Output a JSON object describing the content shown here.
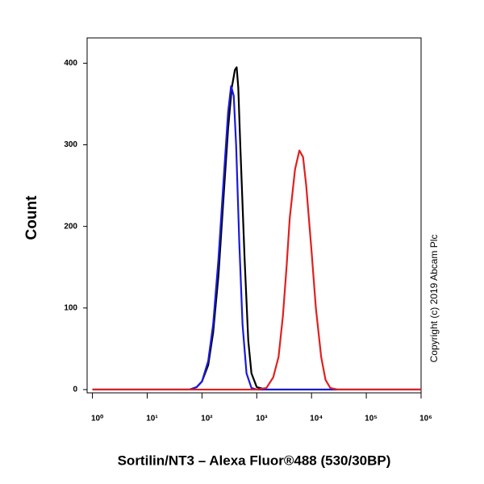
{
  "chart_data": {
    "type": "line",
    "y_label": "Count",
    "x_label": "Sortilin/NT3 – Alexa Fluor®488 (530/30BP)",
    "annotation": "Copyright (c) 2019 Abcam Plc",
    "xscale": "log",
    "xlim": [
      0.8,
      1000000
    ],
    "ylim": [
      -4,
      431
    ],
    "xticks": [
      {
        "value": 1,
        "label": "10⁰"
      },
      {
        "value": 10,
        "label": "10¹"
      },
      {
        "value": 100,
        "label": "10²"
      },
      {
        "value": 1000,
        "label": "10³"
      },
      {
        "value": 10000,
        "label": "10⁴"
      },
      {
        "value": 100000,
        "label": "10⁵"
      },
      {
        "value": 1000000,
        "label": "10⁶"
      }
    ],
    "yticks": [
      0,
      100,
      200,
      300,
      400
    ],
    "grid": false,
    "series": [
      {
        "color": "#000000",
        "x": [
          1,
          60,
          80,
          100,
          130,
          160,
          200,
          250,
          300,
          350,
          400,
          430,
          460,
          500,
          600,
          700,
          800,
          1000,
          1500,
          1000000
        ],
        "values": [
          0,
          0,
          3,
          10,
          30,
          70,
          140,
          240,
          320,
          370,
          392,
          395,
          370,
          300,
          160,
          60,
          20,
          3,
          0,
          0
        ]
      },
      {
        "color": "#1a1adb",
        "x": [
          1,
          60,
          80,
          100,
          130,
          160,
          200,
          250,
          300,
          340,
          380,
          420,
          480,
          550,
          650,
          800,
          1000,
          1000000
        ],
        "values": [
          0,
          0,
          3,
          10,
          35,
          80,
          160,
          260,
          340,
          372,
          360,
          300,
          180,
          80,
          20,
          2,
          0,
          0
        ]
      },
      {
        "color": "#e0201f",
        "x": [
          1,
          1000,
          1500,
          2000,
          2500,
          3000,
          3500,
          4000,
          5000,
          6000,
          7000,
          8000,
          10000,
          12000,
          15000,
          18000,
          22000,
          30000,
          1000000
        ],
        "values": [
          0,
          0,
          2,
          15,
          40,
          90,
          150,
          210,
          270,
          293,
          285,
          250,
          170,
          100,
          40,
          12,
          2,
          0,
          0
        ]
      }
    ]
  }
}
